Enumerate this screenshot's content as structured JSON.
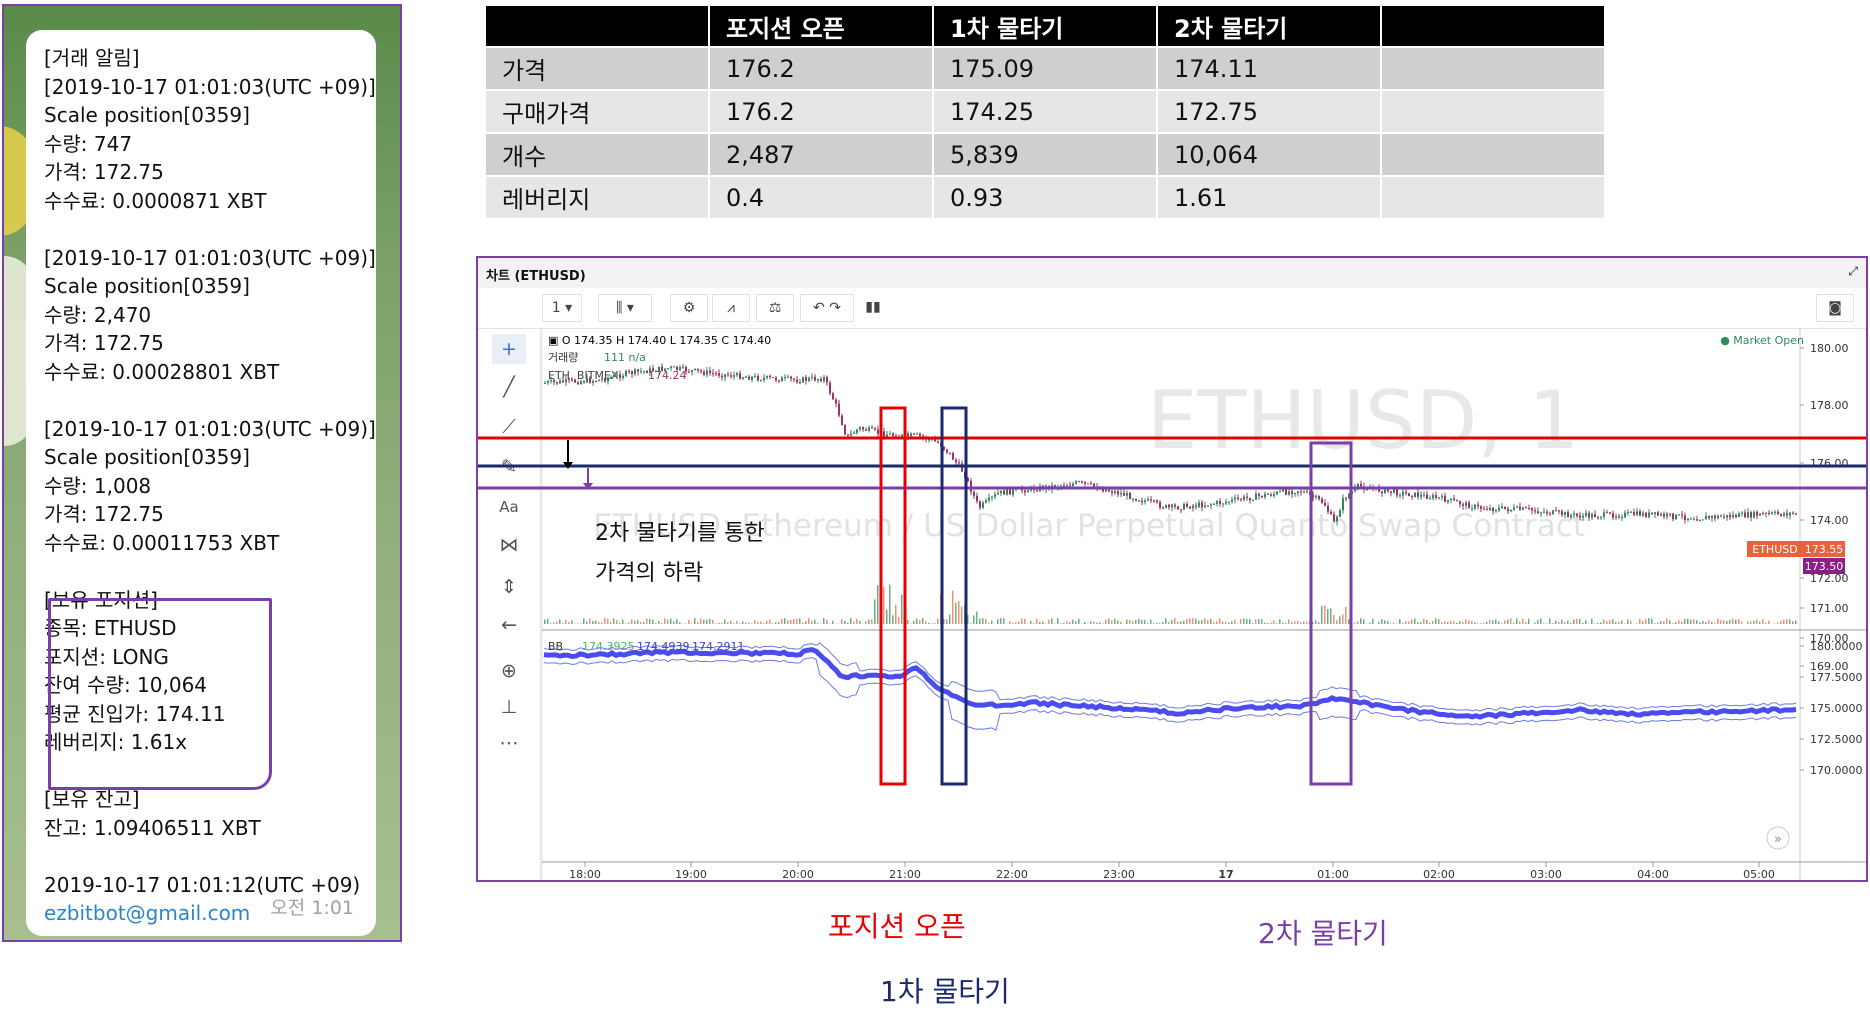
{
  "telegram": {
    "alert_header": "[거래 알림]",
    "trades": [
      {
        "time": "[2019-10-17 01:01:03(UTC +09)]",
        "action": "Scale position[0359]",
        "qty": "수량: 747",
        "price": "가격: 172.75",
        "fee": "수수료: 0.0000871 XBT"
      },
      {
        "time": "[2019-10-17 01:01:03(UTC +09)]",
        "action": "Scale position[0359]",
        "qty": "수량: 2,470",
        "price": "가격: 172.75",
        "fee": "수수료: 0.00028801 XBT"
      },
      {
        "time": "[2019-10-17 01:01:03(UTC +09)]",
        "action": "Scale position[0359]",
        "qty": "수량: 1,008",
        "price": "가격: 172.75",
        "fee": "수수료: 0.00011753 XBT"
      }
    ],
    "position": {
      "header": "[보유 포지션]",
      "symbol": "종목: ETHUSD",
      "side": "포지션: LONG",
      "remaining": "잔여 수량: 10,064",
      "avg_entry": "평균 진입가: 174.11",
      "leverage": "레버리지: 1.61x"
    },
    "balance": {
      "header": "[보유 잔고]",
      "value": "잔고: 1.09406511 XBT"
    },
    "footer_time": "2019-10-17 01:01:12(UTC +09)",
    "email": "ezbitbot@gmail.com",
    "msg_time": "오전 1:01"
  },
  "table": {
    "headers": [
      "",
      "포지션 오픈",
      "1차 물타기",
      "2차 물타기",
      ""
    ],
    "rows": [
      [
        "가격",
        "176.2",
        "175.09",
        "174.11",
        ""
      ],
      [
        "구매가격",
        "176.2",
        "174.25",
        "172.75",
        ""
      ],
      [
        "개수",
        "2,487",
        "5,839",
        "10,064",
        ""
      ],
      [
        "레버리지",
        "0.4",
        "0.93",
        "1.61",
        ""
      ]
    ]
  },
  "chart": {
    "title": "차트 (ETHUSD)",
    "interval": "1",
    "ohlc": "O 174.35  H 174.40  L 174.35  C 174.40",
    "volume_label": "거래량",
    "volume_value": "111  n/a",
    "source": "ETH, BITMEX",
    "source_value": "174.24",
    "market_status": "● Market Open",
    "watermark_big": "ETHUSD, 1",
    "watermark_sub": "ETHUSD: Ethereum / US Dollar Perpetual Quanto Swap Contract",
    "symbol_tag": "ETHUSD",
    "symbol_price": "173.55",
    "last_price": "173.50",
    "handwritten_line1": "2차 물타기를 통한",
    "handwritten_line2": "가격의 하락",
    "bb_label": "BB",
    "bb_values": [
      "174.3925",
      "174.4939",
      "174.2911"
    ],
    "price_ticks": [
      "180.00",
      "178.00",
      "176.00",
      "174.00",
      "172.00",
      "171.00",
      "170.00",
      "169.00"
    ],
    "bb_ticks": [
      "180.0000",
      "177.5000",
      "175.0000",
      "172.5000",
      "170.0000"
    ],
    "time_ticks": [
      "18:00",
      "19:00",
      "20:00",
      "21:00",
      "22:00",
      "23:00",
      "17",
      "01:00",
      "02:00",
      "03:00",
      "04:00",
      "05:00"
    ],
    "colors": {
      "red": "#e60000",
      "navy": "#1a2a6c",
      "purple": "#7a3fa8",
      "bb": "#4a4cf0",
      "up": "#2e8b57",
      "down": "#a0306a"
    }
  },
  "annotations": {
    "open": "포지션 오픈",
    "first": "1차 물타기",
    "second": "2차 물타기"
  }
}
